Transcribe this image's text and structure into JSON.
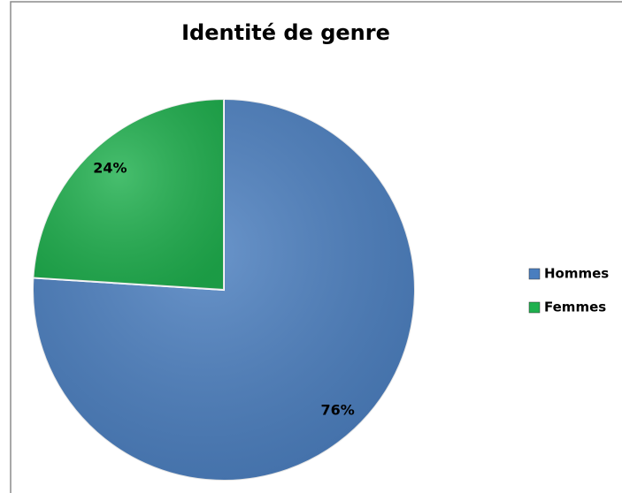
{
  "chart_data": {
    "type": "pie",
    "title": "Identité de genre",
    "categories": [
      "Hommes",
      "Femmes"
    ],
    "values": [
      76,
      24
    ],
    "value_labels": [
      "76%",
      "24%"
    ],
    "colors": [
      "#4a7ebf",
      "#1fb04e"
    ],
    "legend": "right"
  }
}
